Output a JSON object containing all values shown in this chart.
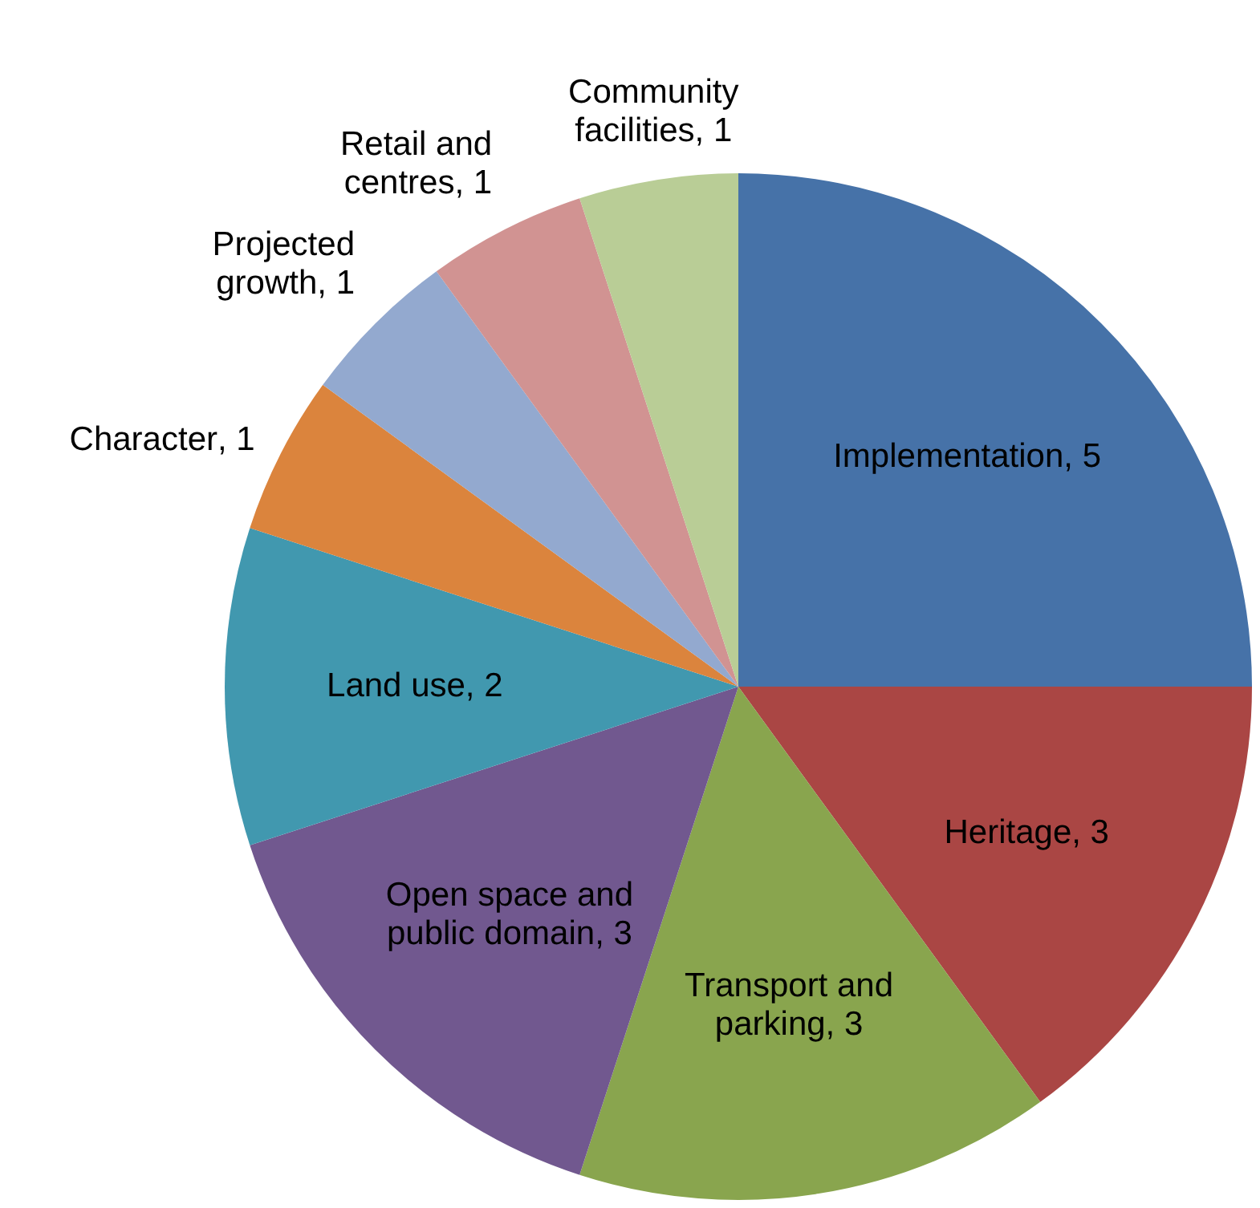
{
  "chart_data": {
    "type": "pie",
    "categories": [
      "Implementation",
      "Heritage",
      "Transport and parking",
      "Open space and public domain",
      "Land use",
      "Character",
      "Projected growth",
      "Retail and centres",
      "Community facilities"
    ],
    "values": [
      5,
      3,
      3,
      3,
      2,
      1,
      1,
      1,
      1
    ],
    "colors": [
      "#4672a8",
      "#aa4644",
      "#89a54e",
      "#71588f",
      "#4198af",
      "#db843d",
      "#93a9cf",
      "#d19392",
      "#b9cd96"
    ],
    "value_labels": [
      ", 5",
      ", 3",
      ", 3",
      ", 3",
      ", 2",
      ", 1",
      ", 1",
      ", 1",
      ", 1"
    ]
  }
}
